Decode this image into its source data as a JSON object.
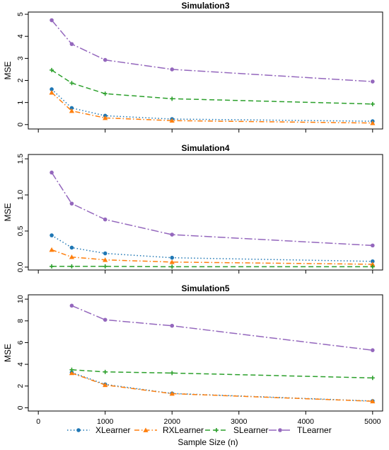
{
  "xlabel": "Sample Size (n)",
  "colors": {
    "XLearner": "#1f77b4",
    "RXLearner": "#ff7f0e",
    "SLearner": "#2ca02c",
    "TLearner": "#9467bd"
  },
  "legend": {
    "placement": "bottom",
    "entries": [
      {
        "name": "XLearner",
        "marker": "circle",
        "dash": "dotted"
      },
      {
        "name": "RXLearner",
        "marker": "triangle",
        "dash": "dashdot"
      },
      {
        "name": "SLearner",
        "marker": "plus",
        "dash": "dashed"
      },
      {
        "name": "TLearner",
        "marker": "circle",
        "dash": "longdashdot"
      }
    ]
  },
  "chart_data": [
    {
      "type": "line",
      "title": "Simulation3",
      "ylabel": "MSE",
      "xlim": [
        -150,
        5150
      ],
      "ylim": [
        -0.2,
        5.1
      ],
      "xticks": [
        0,
        1000,
        2000,
        3000,
        4000,
        5000
      ],
      "xtick_labels": [
        "0",
        "1000",
        "2000",
        "3000",
        "4000",
        "5000"
      ],
      "yticks": [
        0,
        1,
        2,
        3,
        4,
        5
      ],
      "ytick_labels": [
        "0",
        "1",
        "2",
        "3",
        "4",
        "5"
      ],
      "show_x_tick_labels": false,
      "series": [
        {
          "name": "XLearner",
          "x": [
            200,
            500,
            1000,
            2000,
            5000
          ],
          "y": [
            1.6,
            0.75,
            0.4,
            0.25,
            0.15
          ]
        },
        {
          "name": "RXLearner",
          "x": [
            200,
            500,
            1000,
            2000,
            5000
          ],
          "y": [
            1.45,
            0.62,
            0.3,
            0.18,
            0.07
          ]
        },
        {
          "name": "SLearner",
          "x": [
            200,
            500,
            1000,
            2000,
            5000
          ],
          "y": [
            2.47,
            1.88,
            1.4,
            1.17,
            0.93
          ]
        },
        {
          "name": "TLearner",
          "x": [
            200,
            500,
            1000,
            2000,
            5000
          ],
          "y": [
            4.73,
            3.65,
            2.93,
            2.5,
            1.95
          ]
        }
      ]
    },
    {
      "type": "line",
      "title": "Simulation4",
      "ylabel": "MSE",
      "xlim": [
        -150,
        5150
      ],
      "ylim": [
        -0.04,
        1.56
      ],
      "xticks": [
        0,
        1000,
        2000,
        3000,
        4000,
        5000
      ],
      "xtick_labels": [
        "0",
        "1000",
        "2000",
        "3000",
        "4000",
        "5000"
      ],
      "yticks": [
        0,
        0.5,
        1,
        1.5
      ],
      "ytick_labels": [
        "0.0",
        "0.5",
        "1.0",
        "1.5"
      ],
      "show_x_tick_labels": false,
      "series": [
        {
          "name": "XLearner",
          "x": [
            200,
            500,
            1000,
            2000,
            5000
          ],
          "y": [
            0.44,
            0.27,
            0.19,
            0.13,
            0.08
          ]
        },
        {
          "name": "RXLearner",
          "x": [
            200,
            500,
            1000,
            2000,
            5000
          ],
          "y": [
            0.24,
            0.14,
            0.1,
            0.07,
            0.04
          ]
        },
        {
          "name": "SLearner",
          "x": [
            200,
            500,
            1000,
            2000,
            5000
          ],
          "y": [
            0.01,
            0.01,
            0.01,
            0.005,
            0.005
          ]
        },
        {
          "name": "TLearner",
          "x": [
            200,
            500,
            1000,
            2000,
            5000
          ],
          "y": [
            1.31,
            0.88,
            0.66,
            0.45,
            0.3
          ]
        }
      ]
    },
    {
      "type": "line",
      "title": "Simulation5",
      "ylabel": "MSE",
      "xlim": [
        -150,
        5150
      ],
      "ylim": [
        -0.3,
        10.4
      ],
      "xticks": [
        0,
        1000,
        2000,
        3000,
        4000,
        5000
      ],
      "xtick_labels": [
        "0",
        "1000",
        "2000",
        "3000",
        "4000",
        "5000"
      ],
      "yticks": [
        0,
        2,
        4,
        6,
        8,
        10
      ],
      "ytick_labels": [
        "0",
        "2",
        "4",
        "6",
        "8",
        "10"
      ],
      "show_x_tick_labels": true,
      "series": [
        {
          "name": "XLearner",
          "x": [
            500,
            1000,
            2000,
            5000
          ],
          "y": [
            3.25,
            2.15,
            1.32,
            0.62
          ]
        },
        {
          "name": "RXLearner",
          "x": [
            500,
            1000,
            2000,
            5000
          ],
          "y": [
            3.2,
            2.1,
            1.3,
            0.6
          ]
        },
        {
          "name": "SLearner",
          "x": [
            500,
            1000,
            2000,
            5000
          ],
          "y": [
            3.5,
            3.3,
            3.2,
            2.75
          ]
        },
        {
          "name": "TLearner",
          "x": [
            500,
            1000,
            2000,
            5000
          ],
          "y": [
            9.4,
            8.1,
            7.55,
            5.3
          ]
        }
      ]
    }
  ]
}
